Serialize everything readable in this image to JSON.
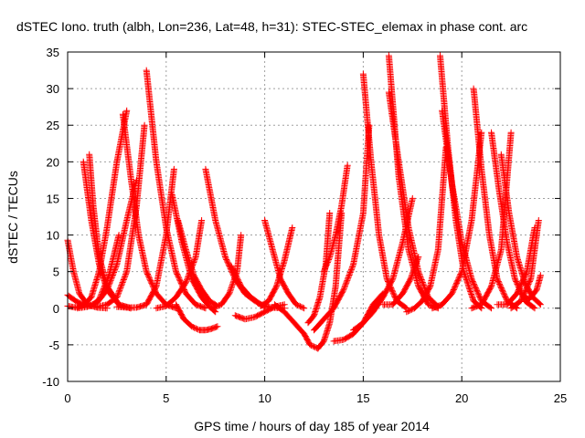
{
  "chart_data": {
    "type": "scatter",
    "title": "dSTEC Iono. truth (albh, Lon=236, Lat=48, h=31): STEC-STEC_elemax in phase cont. arc",
    "xlabel": "GPS time / hours of day 185 of year 2014",
    "ylabel": "dSTEC  / TECUs",
    "xlim": [
      0,
      25
    ],
    "ylim": [
      -10,
      35
    ],
    "x_ticks": [
      0,
      5,
      10,
      15,
      20,
      25
    ],
    "y_ticks": [
      -10,
      -5,
      0,
      5,
      10,
      15,
      20,
      25,
      30,
      35
    ],
    "x_tick_labels": [
      "0",
      "5",
      "10",
      "15",
      "20",
      "25"
    ],
    "y_tick_labels": [
      "-10",
      "-5",
      "0",
      "5",
      "10",
      "15",
      "20",
      "25",
      "30",
      "35"
    ],
    "grid": true,
    "marker": "+",
    "series_color": "#ff0000",
    "arcs": [
      {
        "name": "arc-01",
        "x": [
          0.0,
          0.3,
          0.6,
          1.0,
          1.5,
          2.0
        ],
        "y": [
          9.3,
          5,
          2,
          0.5,
          0.1,
          0
        ]
      },
      {
        "name": "arc-02",
        "x": [
          0.0,
          0.4,
          0.8,
          1.2,
          1.6,
          2.0,
          2.5,
          3.0
        ],
        "y": [
          0.3,
          0.1,
          0.4,
          1.5,
          5,
          11,
          20,
          27
        ]
      },
      {
        "name": "arc-03",
        "x": [
          0.8,
          1.2,
          1.6,
          2.0,
          2.6,
          3.2
        ],
        "y": [
          20,
          12,
          6,
          2.5,
          0.5,
          0
        ]
      },
      {
        "name": "arc-04",
        "x": [
          1.1,
          1.3,
          1.6,
          2.0,
          2.6,
          3.2
        ],
        "y": [
          21,
          14,
          7,
          3,
          0.5,
          0
        ]
      },
      {
        "name": "arc-05",
        "x": [
          0.0,
          0.4,
          0.8,
          1.2,
          1.6,
          2.1,
          2.6
        ],
        "y": [
          1.8,
          1,
          0.4,
          0.3,
          1.2,
          4.5,
          10
        ]
      },
      {
        "name": "arc-06",
        "x": [
          0.5,
          1.0,
          1.5,
          2.0,
          2.5,
          3.0,
          3.5
        ],
        "y": [
          0,
          0.2,
          0.8,
          2.5,
          6,
          12,
          17.5
        ]
      },
      {
        "name": "arc-07",
        "x": [
          2.8,
          3.2,
          3.6,
          4.0,
          4.5,
          5.0,
          5.5
        ],
        "y": [
          26.5,
          18,
          10,
          5,
          2,
          0.5,
          0
        ]
      },
      {
        "name": "arc-08",
        "x": [
          1.5,
          2.0,
          2.5,
          3.0,
          3.5,
          3.9
        ],
        "y": [
          0.2,
          0.5,
          1.5,
          5,
          14,
          25
        ]
      },
      {
        "name": "arc-09",
        "x": [
          4.0,
          4.5,
          5.0,
          5.5,
          6.0,
          6.5,
          7.0
        ],
        "y": [
          32.5,
          20,
          11,
          5,
          2,
          0.5,
          0
        ]
      },
      {
        "name": "arc-10",
        "x": [
          2.5,
          3.0,
          3.5,
          4.0,
          4.5,
          5.0,
          5.4
        ],
        "y": [
          0.2,
          0.1,
          0.1,
          0.5,
          3,
          10,
          19
        ]
      },
      {
        "name": "arc-11",
        "x": [
          5.3,
          5.8,
          6.3,
          6.8,
          7.2,
          7.5
        ],
        "y": [
          15.5,
          9,
          4,
          1.5,
          0.2,
          -0.5
        ]
      },
      {
        "name": "arc-12",
        "x": [
          5.6,
          6.0,
          6.4,
          6.8,
          7.2,
          7.6
        ],
        "y": [
          12,
          8,
          4.5,
          2.5,
          1,
          0.3
        ]
      },
      {
        "name": "arc-13",
        "x": [
          4.5,
          5.0,
          5.5,
          6.0,
          6.5,
          6.8
        ],
        "y": [
          0,
          0.3,
          1.5,
          3.5,
          7,
          12
        ]
      },
      {
        "name": "arc-14",
        "x": [
          5.5,
          5.9,
          6.3,
          6.7,
          7.0,
          7.3,
          7.6
        ],
        "y": [
          0.5,
          -1.5,
          -2.5,
          -3,
          -3,
          -2.8,
          -2.5
        ]
      },
      {
        "name": "arc-15",
        "x": [
          7.0,
          7.5,
          8.0,
          8.5,
          9.0,
          9.5,
          10.0
        ],
        "y": [
          19,
          12,
          7,
          4,
          2,
          1,
          0.2
        ]
      },
      {
        "name": "arc-16",
        "x": [
          7.3,
          7.8,
          8.2,
          8.6,
          8.8
        ],
        "y": [
          0,
          0.5,
          2,
          5,
          10
        ]
      },
      {
        "name": "arc-17",
        "x": [
          8.3,
          8.8,
          9.3,
          9.8,
          10.3,
          11.0
        ],
        "y": [
          5.8,
          3,
          1.5,
          0.5,
          0.1,
          0
        ]
      },
      {
        "name": "arc-18",
        "x": [
          8.5,
          9.0,
          9.5,
          10.0,
          10.5,
          11.0
        ],
        "y": [
          -1,
          -1.5,
          -1.2,
          -0.5,
          0.2,
          0.5
        ]
      },
      {
        "name": "arc-19",
        "x": [
          10.0,
          10.4,
          10.8,
          11.2,
          11.6,
          12.0
        ],
        "y": [
          12,
          8,
          4,
          2,
          0.5,
          0
        ]
      },
      {
        "name": "arc-20",
        "x": [
          9.8,
          10.2,
          10.6,
          11.0,
          11.4
        ],
        "y": [
          0.3,
          1,
          3,
          6.5,
          11
        ]
      },
      {
        "name": "arc-21",
        "x": [
          10.5,
          11.0,
          11.5,
          12.0,
          12.3,
          12.7
        ],
        "y": [
          0.5,
          -0.5,
          -2,
          -3.5,
          -5,
          -5.5
        ]
      },
      {
        "name": "arc-22",
        "x": [
          12.7,
          13.0,
          13.3,
          13.6,
          13.9
        ],
        "y": [
          -5.5,
          -4.5,
          -2,
          3,
          13
        ]
      },
      {
        "name": "arc-23",
        "x": [
          12.2,
          12.5,
          12.8,
          13.1,
          13.3
        ],
        "y": [
          -2,
          -1,
          1.5,
          6,
          13
        ]
      },
      {
        "name": "arc-24",
        "x": [
          13.0,
          13.3,
          13.6,
          13.9,
          14.2
        ],
        "y": [
          5,
          7,
          10,
          14,
          19.5
        ]
      },
      {
        "name": "arc-25",
        "x": [
          13.5,
          14.0,
          14.5,
          15.0,
          15.5,
          16.0
        ],
        "y": [
          -4.5,
          -4.3,
          -3.5,
          -2,
          0.5,
          2
        ]
      },
      {
        "name": "arc-26",
        "x": [
          12.5,
          13.0,
          13.5,
          14.0,
          14.5,
          15.0,
          15.3
        ],
        "y": [
          -3,
          -1.5,
          0,
          2.5,
          6,
          13,
          25
        ]
      },
      {
        "name": "arc-27",
        "x": [
          15.0,
          15.4,
          15.8,
          16.2,
          16.7,
          17.2
        ],
        "y": [
          32,
          20,
          10,
          4,
          1,
          0
        ]
      },
      {
        "name": "arc-28",
        "x": [
          14.5,
          15.0,
          15.5,
          16.0,
          16.5,
          17.0,
          17.5
        ],
        "y": [
          -3,
          -2,
          -0.5,
          1.5,
          4,
          9,
          15
        ]
      },
      {
        "name": "arc-29",
        "x": [
          16.3,
          16.8,
          17.3,
          17.8,
          18.3,
          18.8
        ],
        "y": [
          34.5,
          18,
          8,
          3,
          0.5,
          0
        ]
      },
      {
        "name": "arc-30",
        "x": [
          16.0,
          16.5,
          17.0,
          17.4,
          17.8
        ],
        "y": [
          0.5,
          0.5,
          2,
          4,
          7
        ]
      },
      {
        "name": "arc-31",
        "x": [
          16.3,
          16.8,
          17.3,
          17.8,
          18.3,
          18.8
        ],
        "y": [
          29.5,
          20,
          11,
          5,
          1.5,
          0.2
        ]
      },
      {
        "name": "arc-32",
        "x": [
          18.9,
          19.3,
          19.7,
          20.1,
          20.6,
          21.0
        ],
        "y": [
          34.5,
          22,
          12,
          5,
          1,
          0
        ]
      },
      {
        "name": "arc-33",
        "x": [
          19.0,
          19.5,
          20.0,
          20.5,
          21.0,
          21.5
        ],
        "y": [
          27,
          17,
          9,
          4,
          1,
          0
        ]
      },
      {
        "name": "arc-34",
        "x": [
          18.5,
          19.0,
          19.5,
          20.0,
          20.5,
          21.0
        ],
        "y": [
          0,
          0.5,
          2,
          5,
          12,
          24
        ]
      },
      {
        "name": "arc-35",
        "x": [
          17.2,
          17.6,
          18.0,
          18.4,
          18.8,
          19.2
        ],
        "y": [
          -0.5,
          0,
          1,
          3,
          8,
          22
        ]
      },
      {
        "name": "arc-36",
        "x": [
          20.6,
          21.0,
          21.4,
          21.8,
          22.3,
          22.8
        ],
        "y": [
          30,
          19,
          10,
          4,
          1,
          0
        ]
      },
      {
        "name": "arc-37",
        "x": [
          21.5,
          21.9,
          22.3,
          22.7,
          23.2,
          23.7
        ],
        "y": [
          24,
          16,
          9,
          4,
          1,
          0
        ]
      },
      {
        "name": "arc-38",
        "x": [
          20.5,
          21.0,
          21.5,
          22.0,
          22.5
        ],
        "y": [
          0,
          0.5,
          3,
          8,
          24
        ]
      },
      {
        "name": "arc-39",
        "x": [
          22.0,
          22.4,
          22.8,
          23.2,
          23.6,
          24.0
        ],
        "y": [
          21,
          13,
          7,
          3.5,
          1.5,
          0.5
        ]
      },
      {
        "name": "arc-40",
        "x": [
          21.8,
          22.3,
          22.8,
          23.3,
          23.7
        ],
        "y": [
          0.5,
          0.5,
          2,
          5,
          11
        ]
      },
      {
        "name": "arc-41",
        "x": [
          22.5,
          23.0,
          23.5,
          23.9
        ],
        "y": [
          0,
          1,
          4,
          12
        ]
      },
      {
        "name": "arc-42",
        "x": [
          23.0,
          23.4,
          23.8,
          24.0
        ],
        "y": [
          2,
          1.2,
          2.5,
          4.5
        ]
      }
    ]
  }
}
